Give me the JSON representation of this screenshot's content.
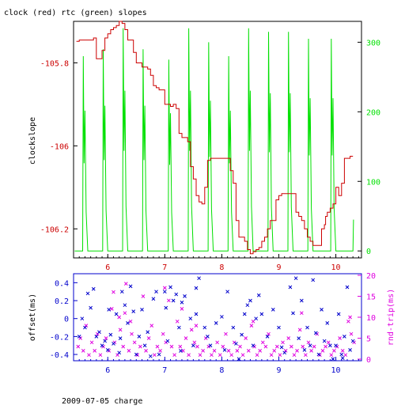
{
  "title": "clock (red) rtc (green) slopes",
  "footer": "2009-07-05 charge",
  "colors": {
    "clock": "#cc0000",
    "rtc": "#00e000",
    "offset": "#0000cc",
    "rtt": "#e000e0",
    "axis_black": "#000000",
    "axis_blue": "#0000cc"
  },
  "chart_data": [
    {
      "type": "line",
      "title": "clock (red) rtc (green) slopes",
      "ylabel": "clockslope",
      "y2label": "",
      "xlabel": "",
      "xlim": [
        5.4,
        10.45
      ],
      "ylim": [
        -106.27,
        -105.7
      ],
      "y2lim": [
        -10,
        330
      ],
      "x_ticks": [
        6,
        7,
        8,
        9,
        10
      ],
      "y_ticks": [
        "-105.8",
        "-106",
        "-106.2"
      ],
      "y_tick_values": [
        -105.8,
        -106.0,
        -106.2
      ],
      "y2_ticks": [
        "300",
        "200",
        "100",
        "0"
      ],
      "y2_tick_values": [
        300,
        200,
        100,
        0
      ],
      "grid": false,
      "series": [
        {
          "name": "clock",
          "axis": "left",
          "x": [
            5.45,
            5.5,
            5.55,
            5.6,
            5.65,
            5.7,
            5.75,
            5.8,
            5.85,
            5.9,
            5.95,
            6.0,
            6.05,
            6.1,
            6.15,
            6.2,
            6.25,
            6.3,
            6.35,
            6.4,
            6.45,
            6.5,
            6.6,
            6.7,
            6.75,
            6.8,
            6.85,
            6.9,
            7.0,
            7.1,
            7.15,
            7.2,
            7.25,
            7.3,
            7.35,
            7.4,
            7.45,
            7.5,
            7.55,
            7.6,
            7.65,
            7.7,
            7.75,
            7.8,
            7.85,
            7.9,
            8.0,
            8.1,
            8.15,
            8.2,
            8.25,
            8.3,
            8.35,
            8.4,
            8.45,
            8.5,
            8.55,
            8.6,
            8.65,
            8.7,
            8.75,
            8.8,
            8.85,
            8.9,
            8.95,
            9.0,
            9.05,
            9.1,
            9.15,
            9.2,
            9.25,
            9.3,
            9.35,
            9.4,
            9.45,
            9.5,
            9.55,
            9.6,
            9.65,
            9.7,
            9.75,
            9.8,
            9.82,
            9.85,
            9.9,
            9.95,
            10.0,
            10.05,
            10.1,
            10.15,
            10.2,
            10.25,
            10.3
          ],
          "values": [
            -105.748,
            -105.745,
            -105.745,
            -105.745,
            -105.745,
            -105.745,
            -105.74,
            -105.79,
            -105.79,
            -105.77,
            -105.74,
            -105.73,
            -105.72,
            -105.715,
            -105.71,
            -105.7,
            -105.705,
            -105.72,
            -105.745,
            -105.745,
            -105.775,
            -105.8,
            -105.81,
            -105.815,
            -105.83,
            -105.855,
            -105.86,
            -105.865,
            -105.9,
            -105.905,
            -105.9,
            -105.91,
            -105.97,
            -105.98,
            -105.98,
            -105.99,
            -106.05,
            -106.08,
            -106.12,
            -106.135,
            -106.14,
            -106.1,
            -106.035,
            -106.03,
            -106.03,
            -106.03,
            -106.03,
            -106.03,
            -106.06,
            -106.09,
            -106.18,
            -106.22,
            -106.22,
            -106.23,
            -106.25,
            -106.26,
            -106.255,
            -106.25,
            -106.245,
            -106.23,
            -106.22,
            -106.2,
            -106.18,
            -106.18,
            -106.13,
            -106.12,
            -106.115,
            -106.115,
            -106.115,
            -106.115,
            -106.115,
            -106.16,
            -106.17,
            -106.18,
            -106.2,
            -106.22,
            -106.23,
            -106.24,
            -106.24,
            -106.24,
            -106.2,
            -106.19,
            -106.17,
            -106.16,
            -106.15,
            -106.14,
            -106.1,
            -106.12,
            -106.09,
            -106.03,
            -106.03,
            -106.025,
            -106.025
          ]
        },
        {
          "name": "rtc",
          "axis": "right",
          "spike_centers": [
            5.6,
            5.95,
            6.3,
            6.65,
            7.1,
            7.45,
            7.8,
            8.15,
            8.5,
            8.85,
            9.2,
            9.55,
            9.95
          ],
          "spike_peaks": [
            280,
            290,
            320,
            290,
            275,
            320,
            300,
            280,
            320,
            315,
            315,
            305,
            305
          ],
          "baseline": 0,
          "final_value": 45
        }
      ]
    },
    {
      "type": "scatter",
      "ylabel": "offset(ms)",
      "y2label": "rnd-trip(ms)",
      "xlim": [
        5.4,
        10.45
      ],
      "ylim": [
        -0.47,
        0.5
      ],
      "y2lim": [
        0,
        20
      ],
      "x_ticks": [
        6,
        7,
        8,
        9,
        10
      ],
      "y_ticks": [
        "0.4",
        "0.2",
        "0",
        "-0.2",
        "-0.4"
      ],
      "y_tick_values": [
        0.4,
        0.2,
        0,
        -0.2,
        -0.4
      ],
      "y2_ticks": [
        "20",
        "15",
        "10",
        "5",
        "0"
      ],
      "y2_tick_values": [
        20,
        15,
        10,
        5,
        0
      ],
      "marker": "x",
      "series": [
        {
          "name": "offset",
          "axis": "left",
          "x": [
            5.5,
            5.6,
            5.7,
            5.75,
            5.8,
            5.85,
            5.9,
            5.95,
            6.0,
            6.05,
            6.1,
            6.15,
            6.2,
            6.25,
            6.3,
            6.35,
            6.4,
            6.5,
            6.55,
            6.6,
            6.65,
            6.7,
            6.8,
            6.85,
            6.9,
            7.0,
            7.05,
            7.1,
            7.15,
            7.2,
            7.25,
            7.3,
            7.35,
            7.45,
            7.5,
            7.55,
            7.6,
            7.7,
            7.75,
            7.8,
            7.9,
            8.0,
            8.05,
            8.1,
            8.2,
            8.25,
            8.3,
            8.4,
            8.45,
            8.5,
            8.55,
            8.6,
            8.7,
            8.8,
            8.9,
            9.0,
            9.1,
            9.2,
            9.3,
            9.35,
            9.4,
            9.45,
            9.5,
            9.55,
            9.6,
            9.7,
            9.75,
            9.8,
            9.85,
            9.9,
            9.95,
            10.0,
            10.05,
            10.1,
            10.15,
            10.2,
            10.25,
            10.3,
            5.55,
            5.65,
            6.02,
            6.22,
            6.45,
            6.75,
            7.02,
            7.28,
            7.55,
            8.35,
            8.65,
            9.05,
            9.25,
            9.65,
            10.12
          ],
          "values": [
            -0.2,
            -0.1,
            0.12,
            0.33,
            -0.2,
            -0.15,
            -0.3,
            -0.25,
            -0.35,
            -0.18,
            -0.28,
            0.05,
            -0.38,
            0.3,
            0.15,
            -0.05,
            0.36,
            -0.4,
            -0.2,
            0.1,
            -0.3,
            -0.15,
            0.22,
            0.3,
            -0.4,
            0.3,
            -0.25,
            0.35,
            0.2,
            0.27,
            -0.1,
            0.18,
            0.25,
            0.0,
            -0.3,
            0.05,
            0.45,
            -0.1,
            -0.2,
            -0.3,
            -0.05,
            0.02,
            -0.35,
            0.3,
            -0.1,
            -0.28,
            -0.45,
            0.05,
            0.15,
            0.2,
            -0.3,
            0.0,
            0.05,
            -0.2,
            0.1,
            -0.1,
            -0.38,
            0.35,
            0.45,
            -0.22,
            0.2,
            -0.35,
            -0.1,
            -0.3,
            0.43,
            -0.4,
            0.1,
            -0.25,
            -0.05,
            -0.3,
            -0.45,
            -0.3,
            0.05,
            -0.4,
            -0.2,
            0.35,
            -0.35,
            -0.25,
            0.0,
            0.28,
            0.1,
            -0.22,
            0.08,
            -0.42,
            0.12,
            -0.36,
            0.34,
            -0.18,
            0.26,
            -0.32,
            0.06,
            -0.16,
            -0.44
          ]
        },
        {
          "name": "rnd-trip",
          "axis": "right",
          "x": [
            5.48,
            5.52,
            5.57,
            5.62,
            5.67,
            5.72,
            5.77,
            5.82,
            5.87,
            5.92,
            5.97,
            6.02,
            6.07,
            6.12,
            6.17,
            6.22,
            6.27,
            6.32,
            6.37,
            6.42,
            6.47,
            6.52,
            6.57,
            6.62,
            6.67,
            6.72,
            6.77,
            6.82,
            6.87,
            6.92,
            6.97,
            7.02,
            7.07,
            7.12,
            7.17,
            7.22,
            7.27,
            7.32,
            7.37,
            7.42,
            7.47,
            7.52,
            7.57,
            7.62,
            7.67,
            7.72,
            7.77,
            7.82,
            7.87,
            7.92,
            7.97,
            8.02,
            8.07,
            8.12,
            8.17,
            8.22,
            8.27,
            8.32,
            8.37,
            8.42,
            8.47,
            8.52,
            8.57,
            8.62,
            8.67,
            8.72,
            8.77,
            8.82,
            8.87,
            8.92,
            8.97,
            9.02,
            9.07,
            9.12,
            9.17,
            9.22,
            9.27,
            9.32,
            9.37,
            9.42,
            9.47,
            9.52,
            9.57,
            9.62,
            9.67,
            9.72,
            9.77,
            9.82,
            9.87,
            9.92,
            9.97,
            10.02,
            10.07,
            10.12,
            10.17,
            10.22,
            10.27,
            10.32,
            6.1,
            6.2,
            6.3,
            6.4,
            7.0,
            7.3,
            7.55,
            8.55,
            9.4,
            10.25
          ],
          "values": [
            3,
            5,
            2,
            8,
            1,
            4,
            2,
            6,
            1,
            3,
            5,
            2,
            12,
            4,
            1,
            7,
            3,
            18,
            2,
            6,
            4,
            1,
            3,
            15,
            2,
            5,
            8,
            1,
            3,
            2,
            6,
            4,
            14,
            3,
            1,
            9,
            3,
            2,
            5,
            1,
            7,
            4,
            3,
            1,
            2,
            5,
            3,
            1,
            2,
            4,
            1,
            3,
            6,
            2,
            1,
            4,
            2,
            3,
            1,
            5,
            2,
            8,
            3,
            1,
            2,
            4,
            3,
            6,
            1,
            2,
            3,
            1,
            4,
            2,
            5,
            3,
            1,
            2,
            7,
            3,
            1,
            4,
            2,
            3,
            6,
            1,
            2,
            3,
            4,
            1,
            2,
            3,
            5,
            2,
            1,
            9,
            6,
            4,
            16,
            10,
            11,
            9,
            17,
            12,
            8,
            9,
            11,
            10
          ]
        }
      ]
    }
  ]
}
